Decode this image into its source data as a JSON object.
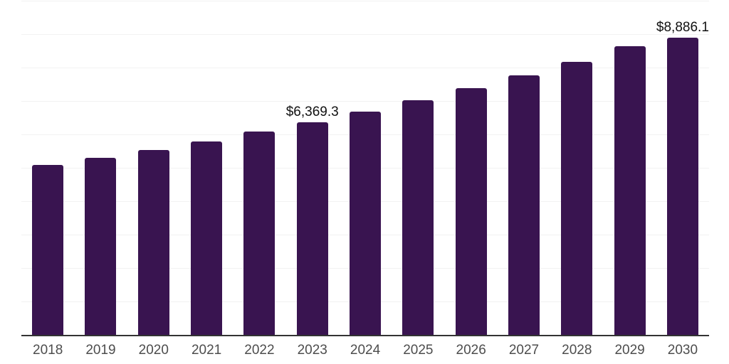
{
  "chart_data": {
    "type": "bar",
    "title": "",
    "xlabel": "",
    "ylabel": "",
    "categories": [
      "2018",
      "2019",
      "2020",
      "2021",
      "2022",
      "2023",
      "2024",
      "2025",
      "2026",
      "2027",
      "2028",
      "2029",
      "2030"
    ],
    "values": [
      5080,
      5305,
      5530,
      5785,
      6085,
      6369.3,
      6675,
      7020,
      7375,
      7765,
      8170,
      8640,
      8886.1
    ],
    "point_labels": [
      "",
      "",
      "",
      "",
      "",
      "$6,369.3",
      "",
      "",
      "",
      "",
      "",
      "",
      "$8,886.1"
    ],
    "ylim": [
      0,
      10000
    ],
    "gridline_step": 1000,
    "grid_on": true,
    "legend": "none",
    "bar_color": "#391450",
    "gridline_color": "#f2f2f2",
    "axis_line_color": "#333333",
    "tick_label_color": "#4d4d4d",
    "point_label_color": "#111111",
    "background_color": "#ffffff"
  }
}
